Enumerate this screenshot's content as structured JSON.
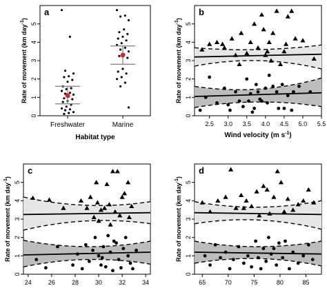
{
  "y_label_parts": [
    "Rate of movement  (km day",
    "-1",
    ")"
  ],
  "panels": [
    {
      "id": "a",
      "panel_label": "a",
      "type": "strip",
      "xlabel": "Habitat type",
      "categories": [
        "Freshwater",
        "Marine"
      ],
      "ylim": [
        0,
        6
      ],
      "yticks": [
        0,
        1,
        2,
        3,
        4,
        5
      ],
      "series": [
        {
          "category": "Freshwater",
          "mean": 1.1,
          "ci_low": 0.65,
          "ci_high": 1.6,
          "points": [
            5.75,
            4.3,
            2.45,
            2.3,
            2.15,
            2.1,
            1.95,
            1.85,
            1.6,
            1.5,
            1.45,
            1.35,
            1.25,
            1.2,
            1.15,
            1.05,
            0.95,
            0.9,
            0.8,
            0.75,
            0.6,
            0.5,
            0.4,
            0.35,
            0.3,
            0.2,
            0.15,
            0.1
          ]
        },
        {
          "category": "Marine",
          "mean": 3.3,
          "ci_low": 2.8,
          "ci_high": 3.8,
          "points": [
            5.75,
            5.45,
            5.4,
            5.2,
            4.7,
            4.55,
            4.45,
            4.3,
            4.2,
            4.1,
            3.95,
            3.85,
            3.7,
            3.6,
            3.5,
            3.35,
            3.25,
            3.15,
            2.55,
            2.4,
            2.3,
            2.1,
            2.0,
            1.8,
            1.6,
            0.45
          ]
        }
      ]
    },
    {
      "id": "b",
      "panel_label": "b",
      "type": "scatter_fit",
      "xlabel_parts": [
        "Wind velocity  (m  s",
        "-1",
        ")"
      ],
      "xlim": [
        2.1,
        5.5
      ],
      "xticks": [
        2.5,
        3.0,
        3.5,
        4.0,
        4.5,
        5.0,
        5.5
      ],
      "xticklabels": [
        "2.5",
        "3.0",
        "3.5",
        "4.0",
        "4.5",
        "5.0",
        "5.5"
      ],
      "ylim": [
        0,
        6
      ],
      "yticks": [
        0,
        1,
        2,
        3,
        4,
        5
      ],
      "fits": [
        {
          "name": "upper",
          "start": 3.2,
          "end": 3.35,
          "ci_start": [
            2.7,
            3.7
          ],
          "ci_mid": [
            3.0,
            3.6
          ],
          "ci_end": [
            2.55,
            3.85
          ]
        },
        {
          "name": "lower",
          "start": 1.05,
          "end": 1.25,
          "ci_start": [
            0.45,
            1.6
          ],
          "ci_mid": [
            0.75,
            1.45
          ],
          "ci_end": [
            0.5,
            2.05
          ]
        }
      ],
      "triangles": [
        [
          2.3,
          3.6
        ],
        [
          2.5,
          3.9
        ],
        [
          2.7,
          4.0
        ],
        [
          2.9,
          3.7
        ],
        [
          3.1,
          4.2
        ],
        [
          3.2,
          3.3
        ],
        [
          3.35,
          4.5
        ],
        [
          3.5,
          3.4
        ],
        [
          3.6,
          4.0
        ],
        [
          3.7,
          5.0
        ],
        [
          3.8,
          3.7
        ],
        [
          3.9,
          5.5
        ],
        [
          4.0,
          3.3
        ],
        [
          4.1,
          4.0
        ],
        [
          4.15,
          3.0
        ],
        [
          4.2,
          4.5
        ],
        [
          4.3,
          5.7
        ],
        [
          4.4,
          2.8
        ],
        [
          4.5,
          3.5
        ],
        [
          4.55,
          3.9
        ],
        [
          4.6,
          5.4
        ],
        [
          4.7,
          5.7
        ],
        [
          4.8,
          4.2
        ],
        [
          5.0,
          4.1
        ],
        [
          5.3,
          3.1
        ],
        [
          3.3,
          2.8
        ],
        [
          2.85,
          3.9
        ],
        [
          3.95,
          4.7
        ],
        [
          4.05,
          3.5
        ]
      ],
      "circles": [
        [
          2.25,
          0.3
        ],
        [
          2.4,
          1.0
        ],
        [
          2.5,
          2.1
        ],
        [
          2.7,
          0.7
        ],
        [
          2.9,
          1.5
        ],
        [
          3.0,
          0.6
        ],
        [
          3.05,
          0.3
        ],
        [
          3.2,
          1.3
        ],
        [
          3.3,
          0.8
        ],
        [
          3.4,
          0.5
        ],
        [
          3.5,
          2.0
        ],
        [
          3.6,
          1.2
        ],
        [
          3.65,
          0.2
        ],
        [
          3.7,
          0.4
        ],
        [
          3.8,
          1.3
        ],
        [
          3.85,
          0.9
        ],
        [
          3.9,
          0.8
        ],
        [
          4.0,
          1.5
        ],
        [
          4.05,
          0.7
        ],
        [
          4.1,
          2.2
        ],
        [
          4.2,
          1.6
        ],
        [
          4.3,
          1.3
        ],
        [
          4.35,
          0.4
        ],
        [
          4.45,
          1.7
        ],
        [
          4.5,
          0.4
        ],
        [
          4.6,
          1.1
        ],
        [
          4.7,
          0.3
        ],
        [
          4.75,
          1.3
        ],
        [
          4.9,
          1.6
        ],
        [
          5.2,
          1.3
        ],
        [
          3.75,
          1.7
        ],
        [
          3.55,
          0.8
        ]
      ]
    },
    {
      "id": "c",
      "panel_label": "c",
      "type": "scatter_fit",
      "xlabel_parts": [
        "Salinity  (PSU)"
      ],
      "xlim": [
        23.6,
        34.4
      ],
      "xticks": [
        24,
        26,
        28,
        30,
        32,
        34
      ],
      "xticklabels": [
        "24",
        "26",
        "28",
        "30",
        "32",
        "34"
      ],
      "ylim": [
        0,
        6
      ],
      "yticks": [
        0,
        1,
        2,
        3,
        4,
        5
      ],
      "fits": [
        {
          "name": "upper",
          "start": 3.25,
          "end": 3.35,
          "ci_start": [
            2.4,
            4.2
          ],
          "ci_mid": [
            2.9,
            3.75
          ],
          "ci_end": [
            2.75,
            3.95
          ]
        },
        {
          "name": "lower",
          "start": 1.05,
          "end": 1.2,
          "ci_start": [
            0.4,
            1.85
          ],
          "ci_mid": [
            0.8,
            1.5
          ],
          "ci_end": [
            0.55,
            1.8
          ]
        }
      ],
      "triangles": [
        [
          24.4,
          4.15
        ],
        [
          25.8,
          4.05
        ],
        [
          27.0,
          3.6
        ],
        [
          28.5,
          4.0
        ],
        [
          29.0,
          3.6
        ],
        [
          29.3,
          4.2
        ],
        [
          29.6,
          3.1
        ],
        [
          29.8,
          5.0
        ],
        [
          30.2,
          3.5
        ],
        [
          30.5,
          3.6
        ],
        [
          30.7,
          4.9
        ],
        [
          30.9,
          3.8
        ],
        [
          31.2,
          5.6
        ],
        [
          31.4,
          3.4
        ],
        [
          31.6,
          5.6
        ],
        [
          31.8,
          3.2
        ],
        [
          32.0,
          4.2
        ],
        [
          32.2,
          4.4
        ],
        [
          32.5,
          5.0
        ],
        [
          32.8,
          3.7
        ],
        [
          30.0,
          2.9
        ],
        [
          31.0,
          2.7
        ],
        [
          29.9,
          3.9
        ],
        [
          32.6,
          3.1
        ]
      ],
      "circles": [
        [
          24.7,
          0.8
        ],
        [
          25.5,
          0.35
        ],
        [
          26.5,
          1.5
        ],
        [
          27.8,
          0.5
        ],
        [
          28.2,
          1.1
        ],
        [
          28.6,
          0.3
        ],
        [
          28.9,
          1.6
        ],
        [
          29.2,
          0.7
        ],
        [
          29.5,
          1.3
        ],
        [
          29.7,
          2.0
        ],
        [
          30.0,
          1.0
        ],
        [
          30.2,
          0.5
        ],
        [
          30.4,
          1.5
        ],
        [
          30.6,
          0.4
        ],
        [
          30.8,
          2.1
        ],
        [
          31.0,
          1.2
        ],
        [
          31.2,
          0.2
        ],
        [
          31.5,
          1.7
        ],
        [
          31.7,
          0.8
        ],
        [
          31.9,
          0.35
        ],
        [
          32.1,
          1.4
        ],
        [
          32.3,
          2.0
        ],
        [
          32.5,
          1.0
        ],
        [
          32.7,
          0.6
        ],
        [
          32.9,
          0.3
        ],
        [
          33.2,
          1.3
        ],
        [
          31.3,
          1.8
        ],
        [
          30.3,
          0.9
        ]
      ]
    },
    {
      "id": "d",
      "panel_label": "d",
      "type": "scatter_fit",
      "xlabel_parts": [
        "Relative Humidity  (%)"
      ],
      "xlim": [
        63.5,
        88.0
      ],
      "xticks": [
        65,
        70,
        75,
        80,
        85
      ],
      "xticklabels": [
        "65",
        "70",
        "75",
        "80",
        "85"
      ],
      "ylim": [
        0,
        6
      ],
      "yticks": [
        0,
        1,
        2,
        3,
        4,
        5
      ],
      "fits": [
        {
          "name": "upper",
          "start": 3.35,
          "end": 3.25,
          "ci_start": [
            2.75,
            3.95
          ],
          "ci_mid": [
            2.95,
            3.65
          ],
          "ci_end": [
            2.45,
            4.0
          ]
        },
        {
          "name": "lower",
          "start": 1.2,
          "end": 1.1,
          "ci_start": [
            0.6,
            1.8
          ],
          "ci_mid": [
            0.85,
            1.5
          ],
          "ci_end": [
            0.45,
            1.8
          ]
        }
      ],
      "triangles": [
        [
          65.0,
          3.9
        ],
        [
          66.5,
          3.4
        ],
        [
          68.0,
          4.0
        ],
        [
          69.5,
          4.2
        ],
        [
          70.5,
          5.7
        ],
        [
          71.5,
          3.6
        ],
        [
          72.5,
          4.3
        ],
        [
          73.5,
          4.0
        ],
        [
          74.5,
          3.7
        ],
        [
          75.5,
          4.5
        ],
        [
          76.0,
          3.2
        ],
        [
          76.8,
          4.8
        ],
        [
          77.5,
          4.6
        ],
        [
          78.0,
          3.3
        ],
        [
          78.8,
          4.2
        ],
        [
          79.5,
          5.6
        ],
        [
          80.2,
          5.0
        ],
        [
          80.8,
          3.4
        ],
        [
          81.5,
          4.1
        ],
        [
          82.5,
          3.5
        ],
        [
          83.5,
          3.8
        ],
        [
          84.5,
          4.0
        ],
        [
          85.5,
          4.6
        ],
        [
          86.5,
          3.9
        ],
        [
          73.0,
          3.6
        ]
      ],
      "circles": [
        [
          65.5,
          1.0
        ],
        [
          66.5,
          0.5
        ],
        [
          67.5,
          1.6
        ],
        [
          68.5,
          0.9
        ],
        [
          69.5,
          1.2
        ],
        [
          70.3,
          0.3
        ],
        [
          71.0,
          0.8
        ],
        [
          72.0,
          1.5
        ],
        [
          73.0,
          0.6
        ],
        [
          73.8,
          1.0
        ],
        [
          74.5,
          0.4
        ],
        [
          75.3,
          1.8
        ],
        [
          75.8,
          0.9
        ],
        [
          76.3,
          0.3
        ],
        [
          76.8,
          1.4
        ],
        [
          77.3,
          0.7
        ],
        [
          77.8,
          2.0
        ],
        [
          78.3,
          1.1
        ],
        [
          78.8,
          1.4
        ],
        [
          79.3,
          0.5
        ],
        [
          79.8,
          1.7
        ],
        [
          80.5,
          0.9
        ],
        [
          81.0,
          1.8
        ],
        [
          81.8,
          0.3
        ],
        [
          82.5,
          1.2
        ],
        [
          83.5,
          0.6
        ],
        [
          84.5,
          1.0
        ],
        [
          85.5,
          1.6
        ],
        [
          86.3,
          0.8
        ]
      ]
    }
  ],
  "chart_data": [
    {
      "type": "strip",
      "panel": "a",
      "xlabel": "Habitat type",
      "ylabel": "Rate of movement (km day-1)",
      "categories": [
        "Freshwater",
        "Marine"
      ],
      "means": [
        1.1,
        3.3
      ],
      "ci": [
        [
          0.65,
          1.6
        ],
        [
          2.8,
          3.8
        ]
      ],
      "ylim": [
        0,
        6
      ]
    },
    {
      "type": "scatter",
      "panel": "b",
      "xlabel": "Wind velocity (m s-1)",
      "ylabel": "Rate of movement (km day-1)",
      "xlim": [
        2.1,
        5.5
      ],
      "ylim": [
        0,
        6
      ]
    },
    {
      "type": "scatter",
      "panel": "c",
      "xlabel": "Salinity (PSU)",
      "ylabel": "Rate of movement (km day-1)",
      "xlim": [
        23.6,
        34.4
      ],
      "ylim": [
        0,
        6
      ]
    },
    {
      "type": "scatter",
      "panel": "d",
      "xlabel": "Relative Humidity (%)",
      "ylabel": "Rate of movement (km day-1)",
      "xlim": [
        63.5,
        88.0
      ],
      "ylim": [
        0,
        6
      ]
    }
  ]
}
